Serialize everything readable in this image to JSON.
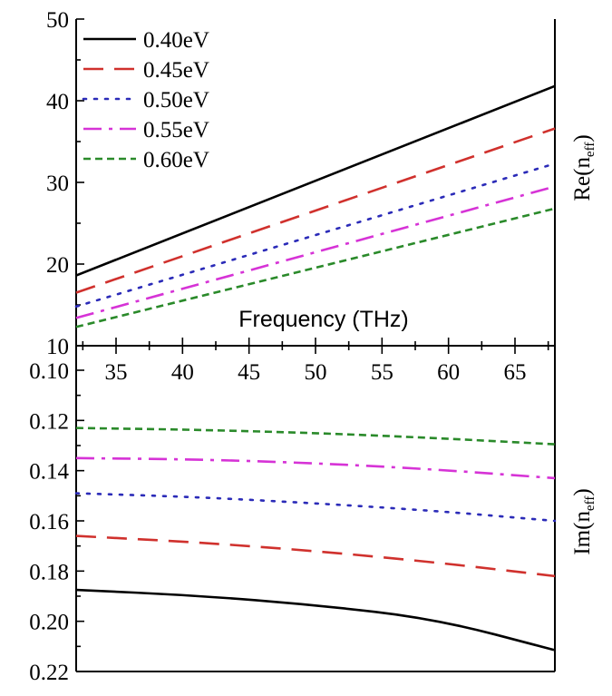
{
  "chart_data": [
    {
      "type": "line",
      "panel": "top",
      "ylabel_main": "Re(n",
      "ylabel_sub": "eff",
      "ylabel_close": ")",
      "xlabel": "Frequency (THz)",
      "xlim": [
        32,
        68
      ],
      "ylim": [
        10,
        50
      ],
      "xticks": [
        35,
        40,
        45,
        50,
        55,
        60,
        65
      ],
      "yticks": [
        10,
        20,
        30,
        40,
        50
      ],
      "legend_position": "top-left",
      "x": [
        32,
        68
      ],
      "series": [
        {
          "name": "0.40eV",
          "color": "#000000",
          "dash": "solid",
          "values": [
            18.6,
            41.8
          ]
        },
        {
          "name": "0.45eV",
          "color": "#d0312d",
          "dash": "dashed",
          "values": [
            16.5,
            36.6
          ]
        },
        {
          "name": "0.50eV",
          "color": "#2b2bb8",
          "dash": "dotted",
          "values": [
            14.8,
            32.3
          ]
        },
        {
          "name": "0.55eV",
          "color": "#d633d6",
          "dash": "dashdot",
          "values": [
            13.4,
            29.5
          ]
        },
        {
          "name": "0.60eV",
          "color": "#2a8a2a",
          "dash": "short-dashed",
          "values": [
            12.3,
            26.8
          ]
        }
      ]
    },
    {
      "type": "line",
      "panel": "bottom",
      "ylabel_main": "Im(n",
      "ylabel_sub": "eff",
      "ylabel_close": ")",
      "xlim": [
        32,
        68
      ],
      "ylim": [
        0.1,
        0.22
      ],
      "y_inverted": true,
      "yticks": [
        "0.10",
        "0.12",
        "0.14",
        "0.16",
        "0.18",
        "0.20",
        "0.22"
      ],
      "x": [
        32,
        41,
        50,
        59,
        68
      ],
      "series": [
        {
          "name": "0.40eV",
          "color": "#000000",
          "dash": "solid",
          "values": [
            0.1875,
            0.1897,
            0.1935,
            0.199,
            0.2115
          ]
        },
        {
          "name": "0.45eV",
          "color": "#d0312d",
          "dash": "dashed",
          "values": [
            0.166,
            0.1685,
            0.172,
            0.1765,
            0.182
          ]
        },
        {
          "name": "0.50eV",
          "color": "#2b2bb8",
          "dash": "dotted",
          "values": [
            0.149,
            0.1505,
            0.153,
            0.156,
            0.16
          ]
        },
        {
          "name": "0.55eV",
          "color": "#d633d6",
          "dash": "dashdot",
          "values": [
            0.135,
            0.1355,
            0.137,
            0.1395,
            0.143
          ]
        },
        {
          "name": "0.60eV",
          "color": "#2a8a2a",
          "dash": "short-dashed",
          "values": [
            0.123,
            0.1237,
            0.125,
            0.127,
            0.1295
          ]
        }
      ]
    }
  ]
}
